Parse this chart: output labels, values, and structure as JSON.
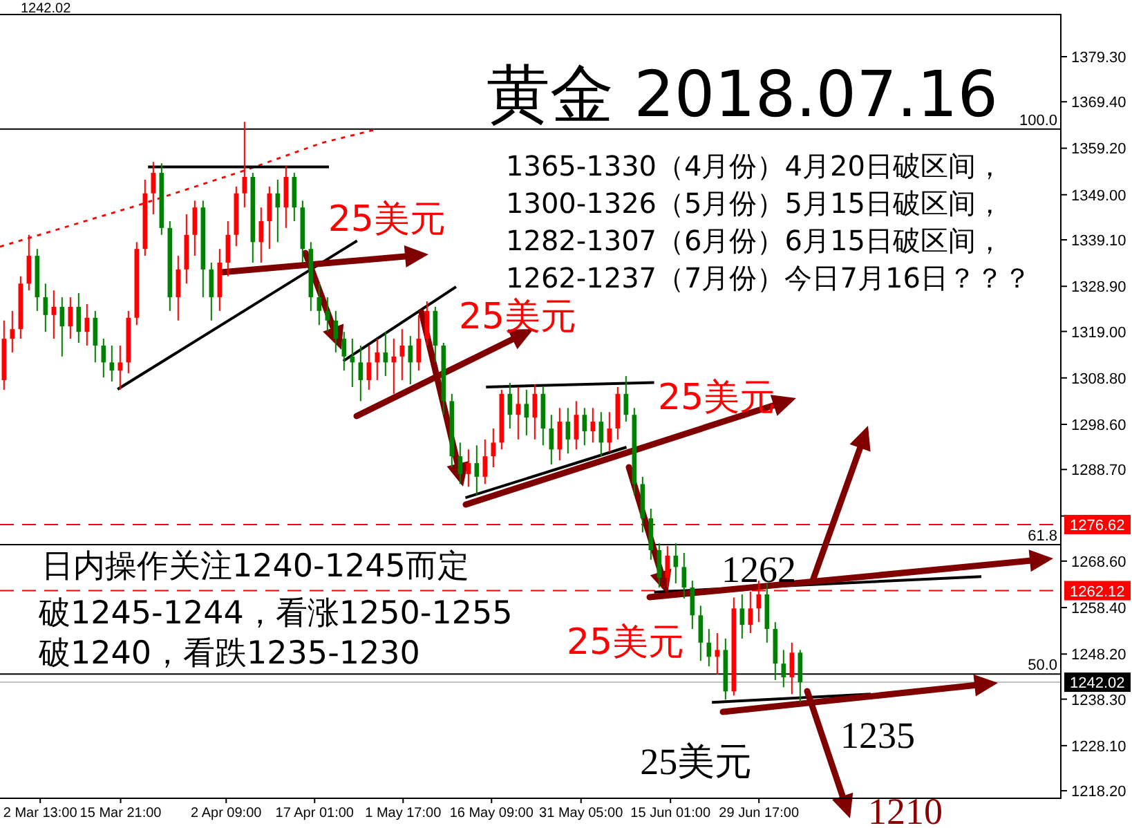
{
  "chart_data": {
    "type": "candlestick",
    "title": "黄金 2018.07.16",
    "x": [
      "2018-02-24T13:00",
      "2018-02-25T22:00",
      "2018-02-27T07:00",
      "2018-02-28T16:00",
      "2018-03-02T01:00",
      "2018-03-03T10:00",
      "2018-03-04T19:00",
      "2018-03-06T04:00",
      "2018-03-07T13:00",
      "2018-03-08T22:00",
      "2018-03-10T07:00",
      "2018-03-11T16:00",
      "2018-03-13T01:00",
      "2018-03-14T10:00",
      "2018-03-15T19:00",
      "2018-03-17T04:00",
      "2018-03-18T13:00",
      "2018-03-19T22:00",
      "2018-03-21T07:00",
      "2018-03-22T16:00",
      "2018-03-24T01:00",
      "2018-03-25T10:00",
      "2018-03-26T19:00",
      "2018-03-28T04:00",
      "2018-03-29T13:00",
      "2018-03-30T22:00",
      "2018-04-01T07:00",
      "2018-04-02T16:00",
      "2018-04-04T01:00",
      "2018-04-05T10:00",
      "2018-04-06T19:00",
      "2018-04-08T04:00",
      "2018-04-09T13:00",
      "2018-04-10T22:00",
      "2018-04-12T07:00",
      "2018-04-13T16:00",
      "2018-04-15T01:00",
      "2018-04-16T10:00",
      "2018-04-17T19:00",
      "2018-04-19T04:00",
      "2018-04-20T13:00",
      "2018-04-21T22:00",
      "2018-04-23T07:00",
      "2018-04-24T16:00",
      "2018-04-26T01:00",
      "2018-04-27T10:00",
      "2018-04-28T19:00",
      "2018-04-30T04:00",
      "2018-05-01T13:00",
      "2018-05-02T22:00",
      "2018-05-04T07:00",
      "2018-05-05T16:00",
      "2018-05-07T01:00",
      "2018-05-08T10:00",
      "2018-05-09T19:00",
      "2018-05-11T04:00",
      "2018-05-12T13:00",
      "2018-05-13T22:00",
      "2018-05-15T07:00",
      "2018-05-16T16:00",
      "2018-05-18T01:00",
      "2018-05-19T10:00",
      "2018-05-20T19:00",
      "2018-05-22T04:00",
      "2018-05-23T13:00",
      "2018-05-24T22:00",
      "2018-05-26T07:00",
      "2018-05-27T16:00",
      "2018-05-29T01:00",
      "2018-05-30T10:00",
      "2018-05-31T19:00",
      "2018-06-02T04:00",
      "2018-06-03T13:00",
      "2018-06-04T22:00",
      "2018-06-06T07:00",
      "2018-06-07T16:00",
      "2018-06-09T01:00",
      "2018-06-10T10:00",
      "2018-06-11T19:00",
      "2018-06-13T04:00",
      "2018-06-14T13:00",
      "2018-06-15T22:00",
      "2018-06-17T07:00",
      "2018-06-18T16:00",
      "2018-06-20T01:00",
      "2018-06-21T10:00",
      "2018-06-22T19:00",
      "2018-06-24T04:00",
      "2018-06-25T13:00",
      "2018-06-26T22:00",
      "2018-06-28T07:00",
      "2018-06-29T16:00",
      "2018-07-01T01:00",
      "2018-07-02T10:00",
      "2018-07-03T19:00",
      "2018-07-05T04:00",
      "2018-07-06T13:00"
    ],
    "ohlc": [
      [
        1308.3,
        1321.4,
        1306.2,
        1317.4
      ],
      [
        1317.4,
        1323.5,
        1314.4,
        1319.5
      ],
      [
        1319.5,
        1331.1,
        1317.4,
        1329.5
      ],
      [
        1329.5,
        1340.2,
        1328.0,
        1335.6
      ],
      [
        1335.6,
        1337.1,
        1323.5,
        1326.5
      ],
      [
        1326.5,
        1329.5,
        1318.9,
        1322.6
      ],
      [
        1322.6,
        1328.0,
        1317.4,
        1324.4
      ],
      [
        1324.4,
        1326.5,
        1313.5,
        1320.1
      ],
      [
        1320.1,
        1326.5,
        1317.4,
        1324.4
      ],
      [
        1324.4,
        1327.4,
        1316.5,
        1318.9
      ],
      [
        1318.9,
        1325.0,
        1315.9,
        1322.0
      ],
      [
        1322.0,
        1323.5,
        1312.2,
        1315.9
      ],
      [
        1315.9,
        1317.4,
        1308.9,
        1312.2
      ],
      [
        1312.2,
        1315.9,
        1308.0,
        1310.4
      ],
      [
        1310.4,
        1315.9,
        1306.2,
        1312.2
      ],
      [
        1312.2,
        1323.5,
        1309.8,
        1322.0
      ],
      [
        1322.0,
        1338.6,
        1320.4,
        1337.1
      ],
      [
        1337.1,
        1352.3,
        1335.6,
        1349.3
      ],
      [
        1349.3,
        1356.2,
        1344.7,
        1353.8
      ],
      [
        1353.8,
        1355.9,
        1340.2,
        1341.7
      ],
      [
        1341.7,
        1343.2,
        1323.5,
        1326.5
      ],
      [
        1326.5,
        1335.6,
        1321.4,
        1332.6
      ],
      [
        1332.6,
        1344.7,
        1329.5,
        1340.2
      ],
      [
        1340.2,
        1347.7,
        1335.6,
        1346.2
      ],
      [
        1346.2,
        1347.7,
        1326.5,
        1332.6
      ],
      [
        1332.6,
        1334.1,
        1321.4,
        1326.5
      ],
      [
        1326.5,
        1337.1,
        1323.5,
        1334.1
      ],
      [
        1334.1,
        1343.2,
        1331.1,
        1340.2
      ],
      [
        1340.2,
        1350.8,
        1337.7,
        1349.3
      ],
      [
        1349.3,
        1365.0,
        1346.2,
        1352.9
      ],
      [
        1352.9,
        1353.8,
        1334.1,
        1338.6
      ],
      [
        1338.6,
        1346.2,
        1334.1,
        1343.2
      ],
      [
        1343.2,
        1350.8,
        1337.1,
        1349.3
      ],
      [
        1349.3,
        1352.3,
        1338.6,
        1346.2
      ],
      [
        1346.2,
        1355.3,
        1341.7,
        1352.9
      ],
      [
        1352.9,
        1353.8,
        1343.2,
        1346.2
      ],
      [
        1346.2,
        1347.7,
        1334.1,
        1337.1
      ],
      [
        1337.1,
        1338.6,
        1323.5,
        1326.5
      ],
      [
        1326.5,
        1329.5,
        1320.4,
        1323.5
      ],
      [
        1323.5,
        1326.5,
        1318.9,
        1321.4
      ],
      [
        1321.4,
        1323.5,
        1314.4,
        1317.4
      ],
      [
        1317.4,
        1318.9,
        1310.4,
        1313.5
      ],
      [
        1313.5,
        1317.4,
        1306.8,
        1312.2
      ],
      [
        1312.2,
        1315.9,
        1303.7,
        1308.3
      ],
      [
        1308.3,
        1315.9,
        1306.2,
        1312.2
      ],
      [
        1312.2,
        1317.4,
        1308.3,
        1314.4
      ],
      [
        1314.4,
        1318.9,
        1309.2,
        1312.2
      ],
      [
        1312.2,
        1317.4,
        1305.3,
        1313.5
      ],
      [
        1313.5,
        1319.5,
        1308.3,
        1315.9
      ],
      [
        1315.9,
        1318.0,
        1307.4,
        1312.2
      ],
      [
        1312.2,
        1322.6,
        1310.4,
        1317.4
      ],
      [
        1317.4,
        1325.6,
        1315.9,
        1323.5
      ],
      [
        1323.5,
        1324.4,
        1312.2,
        1315.9
      ],
      [
        1315.9,
        1316.5,
        1300.7,
        1303.7
      ],
      [
        1303.7,
        1305.3,
        1289.2,
        1291.6
      ],
      [
        1291.6,
        1294.6,
        1285.5,
        1287.7
      ],
      [
        1287.7,
        1293.1,
        1284.9,
        1290.1
      ],
      [
        1290.1,
        1294.0,
        1283.1,
        1287.1
      ],
      [
        1287.1,
        1295.3,
        1285.5,
        1291.6
      ],
      [
        1291.6,
        1297.7,
        1289.2,
        1294.6
      ],
      [
        1294.6,
        1306.2,
        1293.1,
        1305.3
      ],
      [
        1305.3,
        1307.7,
        1297.7,
        1300.7
      ],
      [
        1300.7,
        1306.8,
        1295.3,
        1303.1
      ],
      [
        1303.1,
        1306.2,
        1296.2,
        1300.1
      ],
      [
        1300.1,
        1307.4,
        1295.3,
        1305.3
      ],
      [
        1305.3,
        1306.8,
        1294.0,
        1297.7
      ],
      [
        1297.7,
        1300.7,
        1289.8,
        1293.1
      ],
      [
        1293.1,
        1302.2,
        1290.7,
        1299.2
      ],
      [
        1299.2,
        1302.2,
        1292.2,
        1295.3
      ],
      [
        1295.3,
        1303.7,
        1293.1,
        1300.7
      ],
      [
        1300.7,
        1302.2,
        1294.0,
        1297.1
      ],
      [
        1297.1,
        1302.2,
        1294.6,
        1299.2
      ],
      [
        1299.2,
        1301.3,
        1291.6,
        1294.6
      ],
      [
        1294.6,
        1301.3,
        1292.5,
        1297.7
      ],
      [
        1297.7,
        1306.8,
        1295.3,
        1305.3
      ],
      [
        1305.3,
        1309.2,
        1299.2,
        1300.7
      ],
      [
        1300.7,
        1302.2,
        1283.1,
        1285.5
      ],
      [
        1285.5,
        1287.1,
        1274.9,
        1278.0
      ],
      [
        1278.0,
        1280.1,
        1268.9,
        1271.0
      ],
      [
        1271.0,
        1272.5,
        1262.8,
        1264.9
      ],
      [
        1264.9,
        1271.9,
        1262.8,
        1269.8
      ],
      [
        1269.8,
        1272.5,
        1263.7,
        1267.3
      ],
      [
        1267.3,
        1270.4,
        1260.4,
        1262.8
      ],
      [
        1262.8,
        1264.3,
        1253.7,
        1256.7
      ],
      [
        1256.7,
        1258.8,
        1246.7,
        1250.7
      ],
      [
        1250.7,
        1253.7,
        1245.5,
        1247.6
      ],
      [
        1247.6,
        1252.8,
        1243.7,
        1249.1
      ],
      [
        1249.1,
        1251.6,
        1238.2,
        1240.0
      ],
      [
        1240.0,
        1260.6,
        1239.1,
        1258.2
      ],
      [
        1258.2,
        1261.3,
        1251.6,
        1254.6
      ],
      [
        1254.6,
        1261.9,
        1252.8,
        1258.2
      ],
      [
        1258.2,
        1264.3,
        1255.2,
        1261.3
      ],
      [
        1261.3,
        1263.7,
        1250.7,
        1253.7
      ],
      [
        1253.7,
        1255.2,
        1242.5,
        1246.1
      ],
      [
        1246.1,
        1249.1,
        1240.9,
        1243.1
      ],
      [
        1243.1,
        1250.7,
        1239.4,
        1248.5
      ],
      [
        1248.5,
        1249.1,
        1237.6,
        1242.02
      ]
    ],
    "colors": [
      "#ff0000",
      "#ff0000",
      "#ff0000",
      "#ff0000",
      "#008000",
      "#008000",
      "#ff0000",
      "#008000",
      "#ff0000",
      "#008000",
      "#ff0000",
      "#008000",
      "#008000",
      "#008000",
      "#ff0000",
      "#ff0000",
      "#ff0000",
      "#ff0000",
      "#ff0000",
      "#008000",
      "#008000",
      "#ff0000",
      "#ff0000",
      "#ff0000",
      "#008000",
      "#008000",
      "#ff0000",
      "#ff0000",
      "#ff0000",
      "#ff0000",
      "#008000",
      "#ff0000",
      "#ff0000",
      "#008000",
      "#ff0000",
      "#008000",
      "#008000",
      "#008000",
      "#008000",
      "#008000",
      "#008000",
      "#008000",
      "#008000",
      "#008000",
      "#ff0000",
      "#ff0000",
      "#008000",
      "#ff0000",
      "#ff0000",
      "#008000",
      "#ff0000",
      "#ff0000",
      "#008000",
      "#008000",
      "#008000",
      "#008000",
      "#ff0000",
      "#008000",
      "#ff0000",
      "#ff0000",
      "#ff0000",
      "#008000",
      "#ff0000",
      "#008000",
      "#ff0000",
      "#008000",
      "#008000",
      "#ff0000",
      "#008000",
      "#ff0000",
      "#008000",
      "#ff0000",
      "#008000",
      "#ff0000",
      "#ff0000",
      "#008000",
      "#008000",
      "#008000",
      "#008000",
      "#008000",
      "#ff0000",
      "#008000",
      "#008000",
      "#008000",
      "#008000",
      "#008000",
      "#ff0000",
      "#008000",
      "#ff0000",
      "#008000",
      "#ff0000",
      "#ff0000",
      "#008000",
      "#008000",
      "#008000",
      "#ff0000",
      "#008000"
    ],
    "series": [
      {
        "type": "line",
        "x": [
          "2018-02-23T21:00",
          "2018-03-18T19:00",
          "2018-04-05T09:00",
          "2018-04-18T07:00",
          "2018-04-27T11:00"
        ],
        "values": [
          1337.6,
          1346.7,
          1354.3,
          1360.4,
          1363.4
        ],
        "color": "#ff0000",
        "line_style": "dotted"
      },
      {
        "type": "line",
        "x": [
          "2018-03-20T10:00",
          "2018-04-19T10:00"
        ],
        "values": [
          1355.1,
          1355.1
        ],
        "color": "#000000"
      },
      {
        "type": "line",
        "x": [
          "2018-03-15T09:00",
          "2018-04-24T02:00"
        ],
        "values": [
          1306.3,
          1338.9
        ],
        "color": "#000000"
      },
      {
        "type": "line",
        "x": [
          "2018-04-21T19:00",
          "2018-05-10T12:00"
        ],
        "values": [
          1312.5,
          1328.8
        ],
        "color": "#000000"
      },
      {
        "type": "line",
        "x": [
          "2018-05-15T11:00",
          "2018-06-12T08:00"
        ],
        "values": [
          1306.8,
          1307.8
        ],
        "color": "#000000"
      },
      {
        "type": "line",
        "x": [
          "2018-05-12T01:00",
          "2018-06-07T18:00"
        ],
        "values": [
          1282.5,
          1293.6
        ],
        "color": "#000000"
      },
      {
        "type": "line",
        "x": [
          "2018-06-12T08:00",
          "2018-08-05T14:00"
        ],
        "values": [
          1261.8,
          1265.2
        ],
        "color": "#000000"
      },
      {
        "type": "line",
        "x": [
          "2018-06-21T22:00",
          "2018-07-18T06:00"
        ],
        "values": [
          1237.6,
          1239.4
        ],
        "color": "#000000"
      }
    ],
    "xlim": [
      "2018-02-23T21:00",
      "2018-08-18T21:00"
    ],
    "xticks": [
      {
        "value": "2018-03-02T13:00",
        "label": "2 Mar 13:00"
      },
      {
        "value": "2018-03-15T21:00",
        "label": "15 Mar 21:00"
      },
      {
        "value": "2018-04-02T09:00",
        "label": "2 Apr 09:00"
      },
      {
        "value": "2018-04-17T01:00",
        "label": "17 Apr 01:00"
      },
      {
        "value": "2018-05-01T17:00",
        "label": "1 May 17:00"
      },
      {
        "value": "2018-05-16T09:00",
        "label": "16 May 09:00"
      },
      {
        "value": "2018-05-31T05:00",
        "label": "31 May 05:00"
      },
      {
        "value": "2018-06-15T01:00",
        "label": "15 Jun 01:00"
      },
      {
        "value": "2018-06-29T17:00",
        "label": "29 Jun 17:00"
      }
    ],
    "ylim": [
      1216.7,
      1388.7
    ],
    "yticks": [
      {
        "value": 1379.3,
        "label": "1379.30"
      },
      {
        "value": 1369.4,
        "label": "1369.40"
      },
      {
        "value": 1359.2,
        "label": "1359.20"
      },
      {
        "value": 1349,
        "label": "1349.00"
      },
      {
        "value": 1339.1,
        "label": "1339.10"
      },
      {
        "value": 1328.9,
        "label": "1328.90"
      },
      {
        "value": 1319,
        "label": "1319.00"
      },
      {
        "value": 1308.8,
        "label": "1308.80"
      },
      {
        "value": 1298.6,
        "label": "1298.60"
      },
      {
        "value": 1288.7,
        "label": "1288.70"
      },
      {
        "value": 1278.5,
        "label": null
      },
      {
        "value": 1268.6,
        "label": "1268.60"
      },
      {
        "value": 1258.4,
        "label": "1258.40"
      },
      {
        "value": 1248.2,
        "label": "1248.20"
      },
      {
        "value": 1238.3,
        "label": "1238.30"
      },
      {
        "value": 1228.1,
        "label": "1228.10"
      },
      {
        "value": 1218.2,
        "label": "1218.20"
      }
    ],
    "ref_lines": [
      {
        "axis": "y",
        "value": 1363.4,
        "color": "#000000"
      },
      {
        "axis": "y",
        "value": 1272.2,
        "color": "#000000"
      },
      {
        "axis": "y",
        "value": 1243.8,
        "color": "#000000"
      },
      {
        "axis": "y",
        "value": 1276.62,
        "label": "1276.62",
        "color": "#ff0000",
        "line_style": "dashed"
      },
      {
        "axis": "y",
        "value": 1262.12,
        "label": "1262.12",
        "color": "#ff0000",
        "line_style": "dashed"
      },
      {
        "axis": "y",
        "value": 1242.02,
        "label": "1242.02",
        "color": "#c0c0c0"
      }
    ],
    "annotations": [
      "1242.02",
      "1365-1330（4月份）4月20日破区间，",
      "1300-1326（5月份）5月15日破区间，",
      "1282-1307（6月份）6月15日破区间，",
      "1262-1237（7月份）今日7月16日？？？",
      "日内操作关注1240-1245而定",
      "破1245-1244，看涨1250-1255",
      "破1240，看跌1235-1230",
      {
        "text": "25美元",
        "x": "2018-04-24T02:00",
        "y": 1338.9
      },
      {
        "text": "25美元",
        "x": "2018-05-10T12:00",
        "y": 1328.8
      },
      "25美元",
      "25美元",
      {
        "text": "25美元",
        "x": "2018-06-21T22:00",
        "y": 1237.6
      },
      "1262",
      "1235",
      "1210",
      {
        "text": "100.0",
        "x": "2018-08-18T21:00",
        "y": 1363.4
      },
      {
        "text": "61.8",
        "x": "2018-08-18T21:00",
        "y": 1272.2
      },
      {
        "text": "50.0",
        "x": "2018-08-18T21:00",
        "y": 1243.8
      }
    ]
  }
}
